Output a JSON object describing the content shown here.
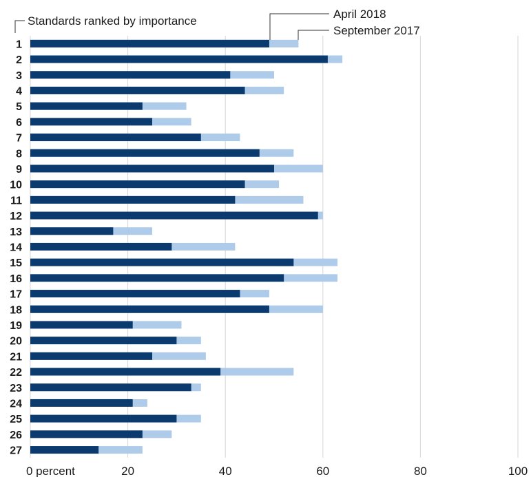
{
  "chart_data": {
    "type": "bar",
    "orientation": "horizontal",
    "stacked": false,
    "overlaid": true,
    "categories": [
      "1",
      "2",
      "3",
      "4",
      "5",
      "6",
      "7",
      "8",
      "9",
      "10",
      "11",
      "12",
      "13",
      "14",
      "15",
      "16",
      "17",
      "18",
      "19",
      "20",
      "21",
      "22",
      "23",
      "24",
      "25",
      "26",
      "27"
    ],
    "series": [
      {
        "name": "September 2017",
        "color": "#aecbea",
        "values": [
          55,
          64,
          50,
          52,
          32,
          33,
          43,
          54,
          60,
          51,
          56,
          60,
          25,
          42,
          63,
          63,
          49,
          60,
          31,
          35,
          36,
          54,
          35,
          24,
          35,
          29,
          23
        ]
      },
      {
        "name": "April 2018",
        "color": "#0b3a6e",
        "values": [
          49,
          61,
          41,
          44,
          23,
          25,
          35,
          47,
          50,
          44,
          42,
          59,
          17,
          29,
          54,
          52,
          43,
          49,
          21,
          30,
          25,
          39,
          33,
          21,
          30,
          23,
          14
        ]
      }
    ],
    "title": "Standards ranked by importance",
    "xlim": [
      0,
      100
    ],
    "xticks": [
      0,
      20,
      40,
      60,
      80,
      100
    ],
    "xtick_labels": [
      "0 percent",
      "20",
      "40",
      "60",
      "80",
      "100"
    ],
    "grid": "vertical"
  }
}
